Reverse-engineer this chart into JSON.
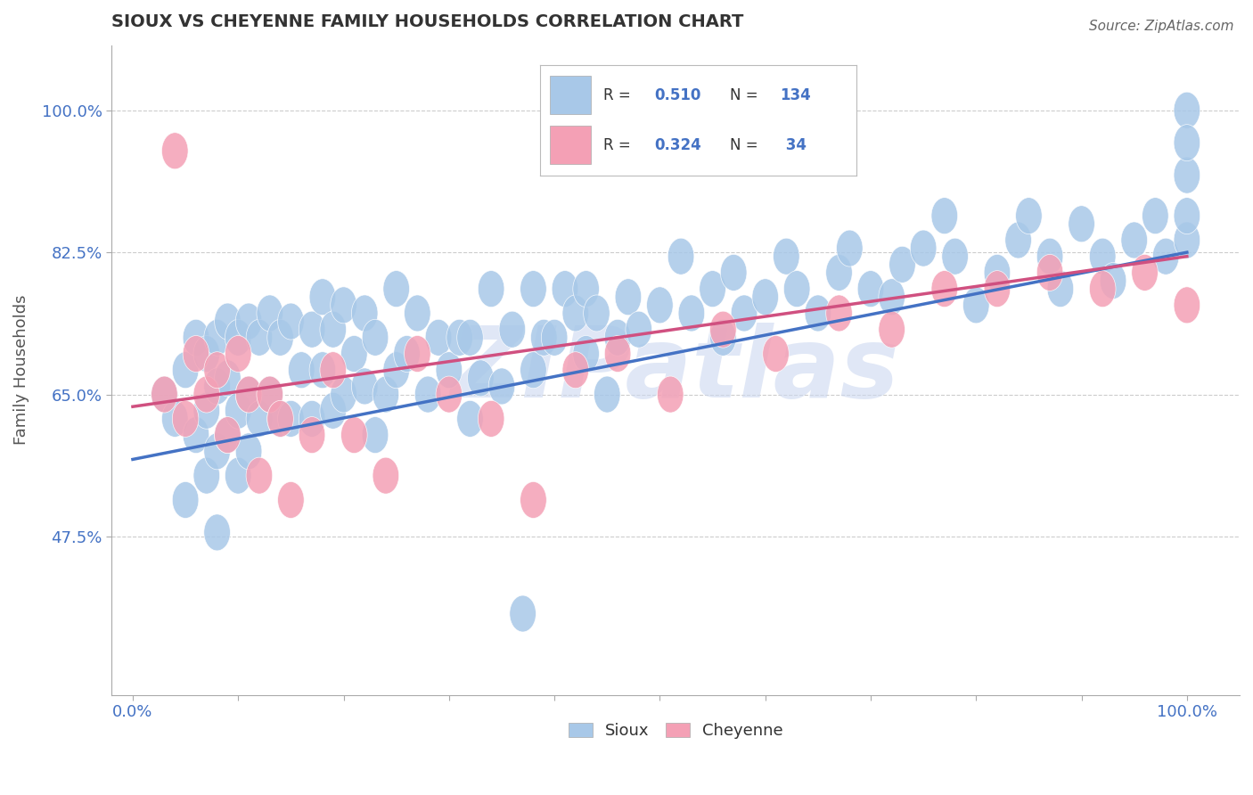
{
  "title": "SIOUX VS CHEYENNE FAMILY HOUSEHOLDS CORRELATION CHART",
  "source": "Source: ZipAtlas.com",
  "ylabel": "Family Households",
  "sioux_color": "#a8c8e8",
  "cheyenne_color": "#f4a0b5",
  "sioux_line_color": "#4472c4",
  "cheyenne_line_color": "#d05080",
  "title_color": "#333333",
  "axis_label_color": "#4472c4",
  "watermark_color": "#ccd8f0",
  "background_color": "#ffffff",
  "grid_color": "#cccccc",
  "y_min": 0.28,
  "y_max": 1.08,
  "x_min": -0.02,
  "x_max": 1.05,
  "yticks": [
    0.475,
    0.65,
    0.825,
    1.0
  ],
  "ytick_labels": [
    "47.5%",
    "65.0%",
    "82.5%",
    "100.0%"
  ],
  "xticks": [
    0.0,
    0.1,
    0.2,
    0.3,
    0.4,
    0.5,
    0.6,
    0.7,
    0.8,
    0.9,
    1.0
  ],
  "xtick_labels": [
    "0.0%",
    "",
    "",
    "",
    "",
    "",
    "",
    "",
    "",
    "",
    "100.0%"
  ],
  "sioux_line_x": [
    0.0,
    1.0
  ],
  "sioux_line_y": [
    0.57,
    0.825
  ],
  "cheyenne_line_x": [
    0.0,
    1.0
  ],
  "cheyenne_line_y": [
    0.635,
    0.82
  ],
  "sioux_x": [
    0.03,
    0.04,
    0.05,
    0.05,
    0.06,
    0.06,
    0.07,
    0.07,
    0.07,
    0.08,
    0.08,
    0.08,
    0.08,
    0.09,
    0.09,
    0.09,
    0.1,
    0.1,
    0.1,
    0.11,
    0.11,
    0.11,
    0.12,
    0.12,
    0.13,
    0.13,
    0.14,
    0.14,
    0.15,
    0.15,
    0.16,
    0.17,
    0.17,
    0.18,
    0.18,
    0.19,
    0.19,
    0.2,
    0.2,
    0.21,
    0.22,
    0.22,
    0.23,
    0.23,
    0.24,
    0.25,
    0.25,
    0.26,
    0.27,
    0.28,
    0.29,
    0.3,
    0.31,
    0.32,
    0.32,
    0.33,
    0.34,
    0.35,
    0.36,
    0.37,
    0.38,
    0.38,
    0.39,
    0.4,
    0.41,
    0.42,
    0.43,
    0.43,
    0.44,
    0.45,
    0.46,
    0.47,
    0.48,
    0.5,
    0.52,
    0.53,
    0.55,
    0.56,
    0.57,
    0.58,
    0.6,
    0.62,
    0.63,
    0.65,
    0.67,
    0.68,
    0.7,
    0.72,
    0.73,
    0.75,
    0.77,
    0.78,
    0.8,
    0.82,
    0.84,
    0.85,
    0.87,
    0.88,
    0.9,
    0.92,
    0.93,
    0.95,
    0.97,
    0.98,
    1.0,
    1.0,
    1.0,
    1.0,
    1.0
  ],
  "sioux_y": [
    0.65,
    0.62,
    0.52,
    0.68,
    0.6,
    0.72,
    0.55,
    0.63,
    0.7,
    0.48,
    0.58,
    0.66,
    0.72,
    0.6,
    0.67,
    0.74,
    0.55,
    0.63,
    0.72,
    0.58,
    0.65,
    0.74,
    0.62,
    0.72,
    0.65,
    0.75,
    0.62,
    0.72,
    0.62,
    0.74,
    0.68,
    0.62,
    0.73,
    0.68,
    0.77,
    0.63,
    0.73,
    0.65,
    0.76,
    0.7,
    0.66,
    0.75,
    0.6,
    0.72,
    0.65,
    0.68,
    0.78,
    0.7,
    0.75,
    0.65,
    0.72,
    0.68,
    0.72,
    0.62,
    0.72,
    0.67,
    0.78,
    0.66,
    0.73,
    0.38,
    0.68,
    0.78,
    0.72,
    0.72,
    0.78,
    0.75,
    0.7,
    0.78,
    0.75,
    0.65,
    0.72,
    0.77,
    0.73,
    0.76,
    0.82,
    0.75,
    0.78,
    0.72,
    0.8,
    0.75,
    0.77,
    0.82,
    0.78,
    0.75,
    0.8,
    0.83,
    0.78,
    0.77,
    0.81,
    0.83,
    0.87,
    0.82,
    0.76,
    0.8,
    0.84,
    0.87,
    0.82,
    0.78,
    0.86,
    0.82,
    0.79,
    0.84,
    0.87,
    0.82,
    0.92,
    0.84,
    0.87,
    1.0,
    0.96
  ],
  "cheyenne_x": [
    0.03,
    0.04,
    0.05,
    0.06,
    0.07,
    0.08,
    0.09,
    0.1,
    0.11,
    0.12,
    0.13,
    0.14,
    0.15,
    0.17,
    0.19,
    0.21,
    0.24,
    0.27,
    0.3,
    0.34,
    0.38,
    0.42,
    0.46,
    0.51,
    0.56,
    0.61,
    0.67,
    0.72,
    0.77,
    0.82,
    0.87,
    0.92,
    0.96,
    1.0
  ],
  "cheyenne_y": [
    0.65,
    0.95,
    0.62,
    0.7,
    0.65,
    0.68,
    0.6,
    0.7,
    0.65,
    0.55,
    0.65,
    0.62,
    0.52,
    0.6,
    0.68,
    0.6,
    0.55,
    0.7,
    0.65,
    0.62,
    0.52,
    0.68,
    0.7,
    0.65,
    0.73,
    0.7,
    0.75,
    0.73,
    0.78,
    0.78,
    0.8,
    0.78,
    0.8,
    0.76
  ]
}
